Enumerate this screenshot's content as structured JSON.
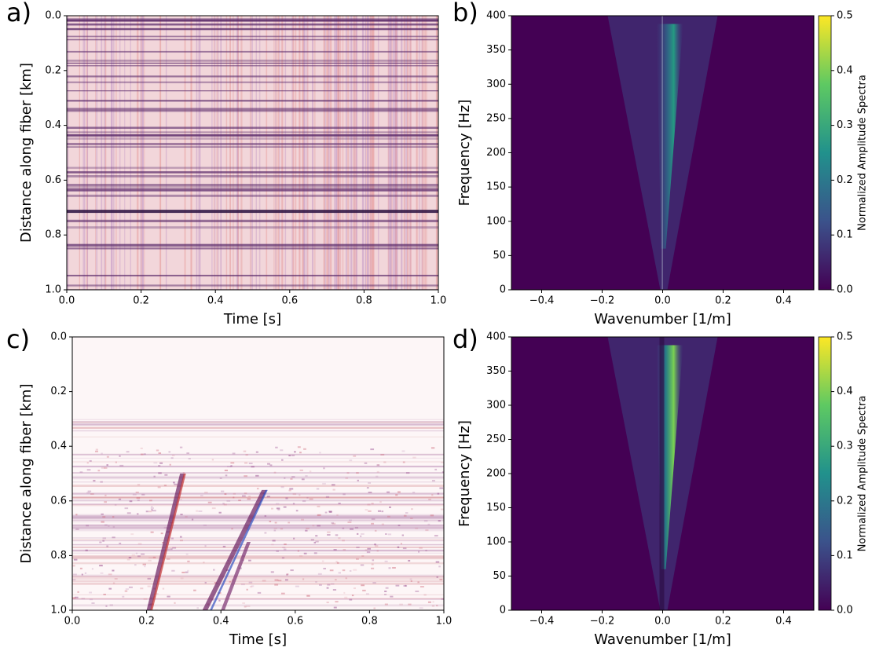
{
  "chart_data": [
    {
      "type": "heatmap",
      "panel_label": "a)",
      "xlabel": "Time [s]",
      "ylabel": "Distance along fiber [km]",
      "xlim": [
        0,
        1
      ],
      "ylim": [
        0,
        1
      ],
      "yinvert": true,
      "xticks": [
        {
          "value": 0,
          "label": "0.0"
        },
        0.2,
        0.4,
        0.6,
        0.8,
        {
          "value": 1,
          "label": "1.0"
        }
      ],
      "yticks": [
        {
          "value": 0,
          "label": "0.0"
        },
        0.2,
        0.4,
        0.6,
        0.8,
        {
          "value": 1,
          "label": "1.0"
        }
      ],
      "cmap": "seismic-pink"
    },
    {
      "type": "heatmap",
      "panel_label": "b)",
      "xlabel": "Wavenumber [1/m]",
      "ylabel": "Frequency [Hz]",
      "xlim": [
        -0.5,
        0.5
      ],
      "ylim": [
        0,
        400
      ],
      "yinvert": false,
      "xticks": [
        {
          "value": -0.4,
          "label": "−0.4"
        },
        {
          "value": -0.2,
          "label": "−0.2"
        },
        {
          "value": 0,
          "label": "0.0"
        },
        0.2,
        0.4
      ],
      "yticks": [
        0,
        50,
        100,
        150,
        200,
        250,
        300,
        350,
        400
      ],
      "cmap": "viridis",
      "colorbar_label": "Normalized Amplitude Spectra",
      "clim": [
        0,
        0.5
      ],
      "cticks": [
        {
          "value": 0,
          "label": "0.0"
        },
        0.1,
        0.2,
        0.3,
        0.4,
        0.5
      ]
    },
    {
      "type": "heatmap",
      "panel_label": "c)",
      "xlabel": "Time [s]",
      "ylabel": "Distance along fiber [km]",
      "xlim": [
        0,
        1
      ],
      "ylim": [
        0,
        1
      ],
      "yinvert": true,
      "xticks": [
        {
          "value": 0,
          "label": "0.0"
        },
        0.2,
        0.4,
        0.6,
        0.8,
        {
          "value": 1,
          "label": "1.0"
        }
      ],
      "yticks": [
        {
          "value": 0,
          "label": "0.0"
        },
        0.2,
        0.4,
        0.6,
        0.8,
        {
          "value": 1,
          "label": "1.0"
        }
      ],
      "cmap": "seismic-white"
    },
    {
      "type": "heatmap",
      "panel_label": "d)",
      "xlabel": "Wavenumber [1/m]",
      "ylabel": "Frequency [Hz]",
      "xlim": [
        -0.5,
        0.5
      ],
      "ylim": [
        0,
        400
      ],
      "yinvert": false,
      "xticks": [
        {
          "value": -0.4,
          "label": "−0.4"
        },
        {
          "value": -0.2,
          "label": "−0.2"
        },
        {
          "value": 0,
          "label": "0.0"
        },
        0.2,
        0.4
      ],
      "yticks": [
        0,
        50,
        100,
        150,
        200,
        250,
        300,
        350,
        400
      ],
      "cmap": "viridis",
      "colorbar_label": "Normalized Amplitude Spectra",
      "clim": [
        0,
        0.5
      ],
      "cticks": [
        {
          "value": 0,
          "label": "0.0"
        },
        0.1,
        0.2,
        0.3,
        0.4,
        0.5
      ]
    }
  ]
}
